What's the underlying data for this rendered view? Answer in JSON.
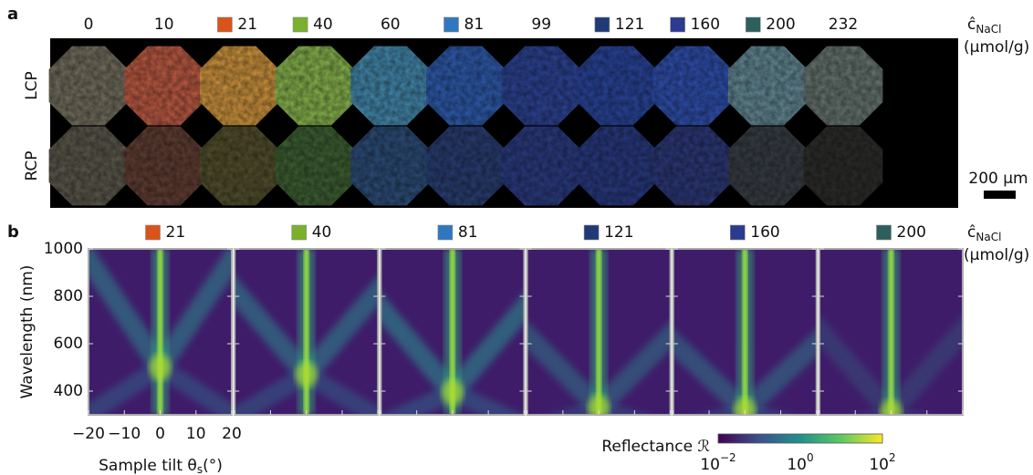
{
  "panel_a": {
    "label": "a",
    "concentrations": [
      {
        "value": 0
      },
      {
        "value": 10
      },
      {
        "value": 21,
        "swatch": "#d9541a"
      },
      {
        "value": 40,
        "swatch": "#7ab02c"
      },
      {
        "value": 60
      },
      {
        "value": 81,
        "swatch": "#2f78bf"
      },
      {
        "value": 99
      },
      {
        "value": 121,
        "swatch": "#1f3a75"
      },
      {
        "value": 160,
        "swatch": "#2b3b8f"
      },
      {
        "value": 200,
        "swatch": "#2c5f5d"
      },
      {
        "value": 232
      }
    ],
    "rows": [
      "LCP",
      "RCP"
    ],
    "unit_symbol": "ĉ",
    "unit_subscript": "NaCl",
    "unit": "(μmol/g)",
    "scale_bar": "200 μm"
  },
  "panel_b": {
    "label": "b",
    "concentrations": [
      {
        "value": 21,
        "swatch": "#d9541a"
      },
      {
        "value": 40,
        "swatch": "#7ab02c"
      },
      {
        "value": 81,
        "swatch": "#2f78bf"
      },
      {
        "value": 121,
        "swatch": "#1f3a75"
      },
      {
        "value": 160,
        "swatch": "#2b3b8f"
      },
      {
        "value": 200,
        "swatch": "#2c5f5d"
      }
    ],
    "unit_symbol": "ĉ",
    "unit_subscript": "NaCl",
    "unit": "(μmol/g)",
    "y_axis_label": "Wavelength (nm)",
    "yticks": [
      1000,
      800,
      600,
      400
    ],
    "xticks": [
      "−20",
      "−10",
      "0",
      "10",
      "20"
    ],
    "x_axis_label": "Sample tilt θ",
    "x_axis_subscript": "s",
    "x_axis_unit": "(°)",
    "colorbar_label": "Reflectance ℛ",
    "colorbar_base": "10",
    "colorbar_exponents": [
      "−2",
      "0",
      "2"
    ]
  }
}
